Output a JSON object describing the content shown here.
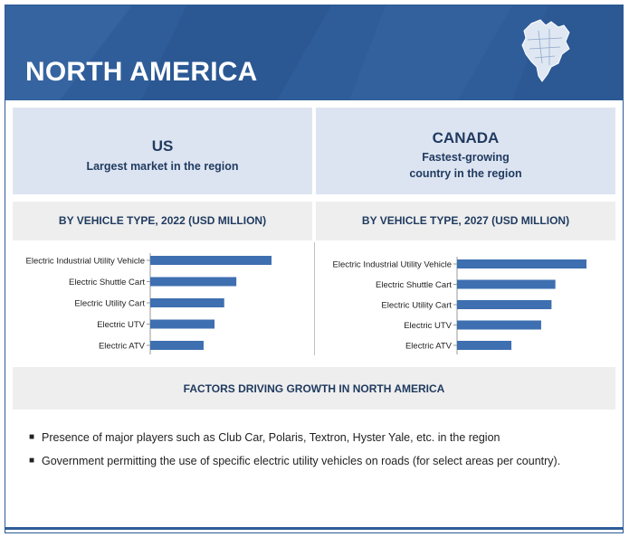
{
  "banner": {
    "title": "NORTH AMERICA"
  },
  "panels": [
    {
      "country": "US",
      "subtitle_lines": [
        "Largest market in the region"
      ]
    },
    {
      "country": "CANADA",
      "subtitle_lines": [
        "Fastest-growing",
        "country in the region"
      ]
    }
  ],
  "chart_data": [
    {
      "type": "bar",
      "orientation": "horizontal",
      "title": "BY VEHICLE TYPE, 2022 (USD MILLION)",
      "categories": [
        "Electric Industrial Utility Vehicle",
        "Electric Shuttle Cart",
        "Electric Utility Cart",
        "Electric UTV",
        "Electric ATV"
      ],
      "values": [
        100,
        71,
        61,
        53,
        44
      ],
      "value_scale": "relative (no axis printed)",
      "bar_color": "#3e6fb0",
      "axis": "hidden",
      "grid": false
    },
    {
      "type": "bar",
      "orientation": "horizontal",
      "title": "BY VEHICLE TYPE, 2027 (USD MILLION)",
      "categories": [
        "Electric Industrial Utility Vehicle",
        "Electric Shuttle Cart",
        "Electric Utility Cart",
        "Electric UTV",
        "Electric ATV"
      ],
      "values": [
        100,
        76,
        73,
        65,
        42
      ],
      "value_scale": "relative (no axis printed)",
      "bar_color": "#3e6fb0",
      "axis": "hidden",
      "grid": false
    }
  ],
  "factors": {
    "heading": "FACTORS DRIVING GROWTH IN NORTH AMERICA",
    "items": [
      "Presence of major players such as Club Car, Polaris, Textron, Hyster Yale, etc. in the region",
      "Government permitting the use of specific electric utility vehicles on roads (for select areas per country)."
    ]
  },
  "icons": {
    "map": "north-america-map-icon",
    "bullet": "square-bullet-icon"
  },
  "colors": {
    "banner": "#2f5d99",
    "panel": "#dde4f1",
    "strip": "#eeeeee",
    "heading_text": "#1f3a5f",
    "bar": "#3e6fb0"
  }
}
